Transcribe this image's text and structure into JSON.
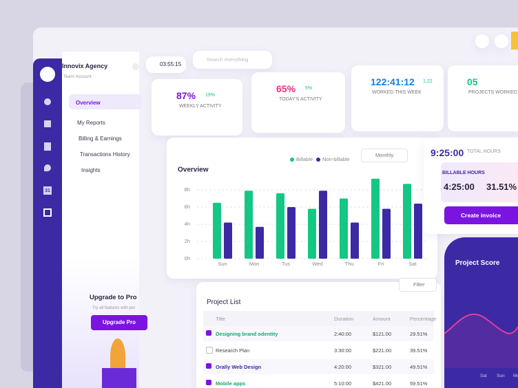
{
  "header": {
    "timer": "03:55:15",
    "search_placeholder": "Search everything"
  },
  "sidebar": {
    "org": "Innovix Agency",
    "org_sub": "Team Account",
    "nav": [
      "Overview",
      "My Reports",
      "Billing & Earnings",
      "Transactions History",
      "Insights"
    ],
    "calendar_day": "31",
    "upgrade_title": "Upgrade to Pro",
    "upgrade_sub": "Try all features with pro",
    "upgrade_button": "Upgrade Pro"
  },
  "stats": [
    {
      "value": "87%",
      "change": "19%",
      "label": "WEEKLY ACTIVITY"
    },
    {
      "value": "65%",
      "change": "5%",
      "label": "TODAY'S ACTIVITY"
    },
    {
      "value": "122:41:12",
      "change": "1:22",
      "label": "WORKED THIS WEEK"
    },
    {
      "value": "05",
      "label": "PROJECTS WORKED"
    }
  ],
  "chart_data": {
    "type": "bar",
    "title": "Overview",
    "period": "Monthly",
    "categories": [
      "Sun",
      "Mon",
      "Tus",
      "Wed",
      "Thu",
      "Fri",
      "Sat"
    ],
    "series": [
      {
        "name": "Billable",
        "color": "#14c784",
        "values": [
          6.5,
          7.9,
          7.6,
          5.8,
          7.0,
          9.3,
          8.7
        ]
      },
      {
        "name": "Non-billable",
        "color": "#3b2aa3",
        "values": [
          4.2,
          3.7,
          6.0,
          7.9,
          4.2,
          5.8,
          6.4
        ]
      }
    ],
    "ylim": [
      0,
      10
    ],
    "yticks": [
      {
        "value": 0,
        "label": "0h"
      },
      {
        "value": 2,
        "label": "2h"
      },
      {
        "value": 4,
        "label": "4h"
      },
      {
        "value": 6,
        "label": "6h"
      },
      {
        "value": 8,
        "label": "8h"
      }
    ],
    "grid": true
  },
  "project_list": {
    "title": "Project List",
    "filter": "Filter",
    "columns": [
      "Title",
      "Duration",
      "Amount",
      "Percentage"
    ],
    "rows": [
      [
        "Designing brand odentity",
        "2:40:00",
        "$121.00",
        "29.51%"
      ],
      [
        "Research Plan",
        "3:30:00",
        "$221.00",
        "39.51%"
      ],
      [
        "Orally Web Design",
        "4:20:00",
        "$321.00",
        "49.51%"
      ],
      [
        "Mobile apps",
        "5:10:00",
        "$421.00",
        "59.51%"
      ]
    ]
  },
  "summary": {
    "total": "9:25:00",
    "total_label": "TOTAL HOURS",
    "billable_label": "BILLABLE HOURS",
    "billable": "4:25:00",
    "billable_pct": "31.51%",
    "button": "Create invoice",
    "score_title": "Project Score",
    "score_days": [
      "Sat",
      "Sun",
      "Mo"
    ]
  }
}
